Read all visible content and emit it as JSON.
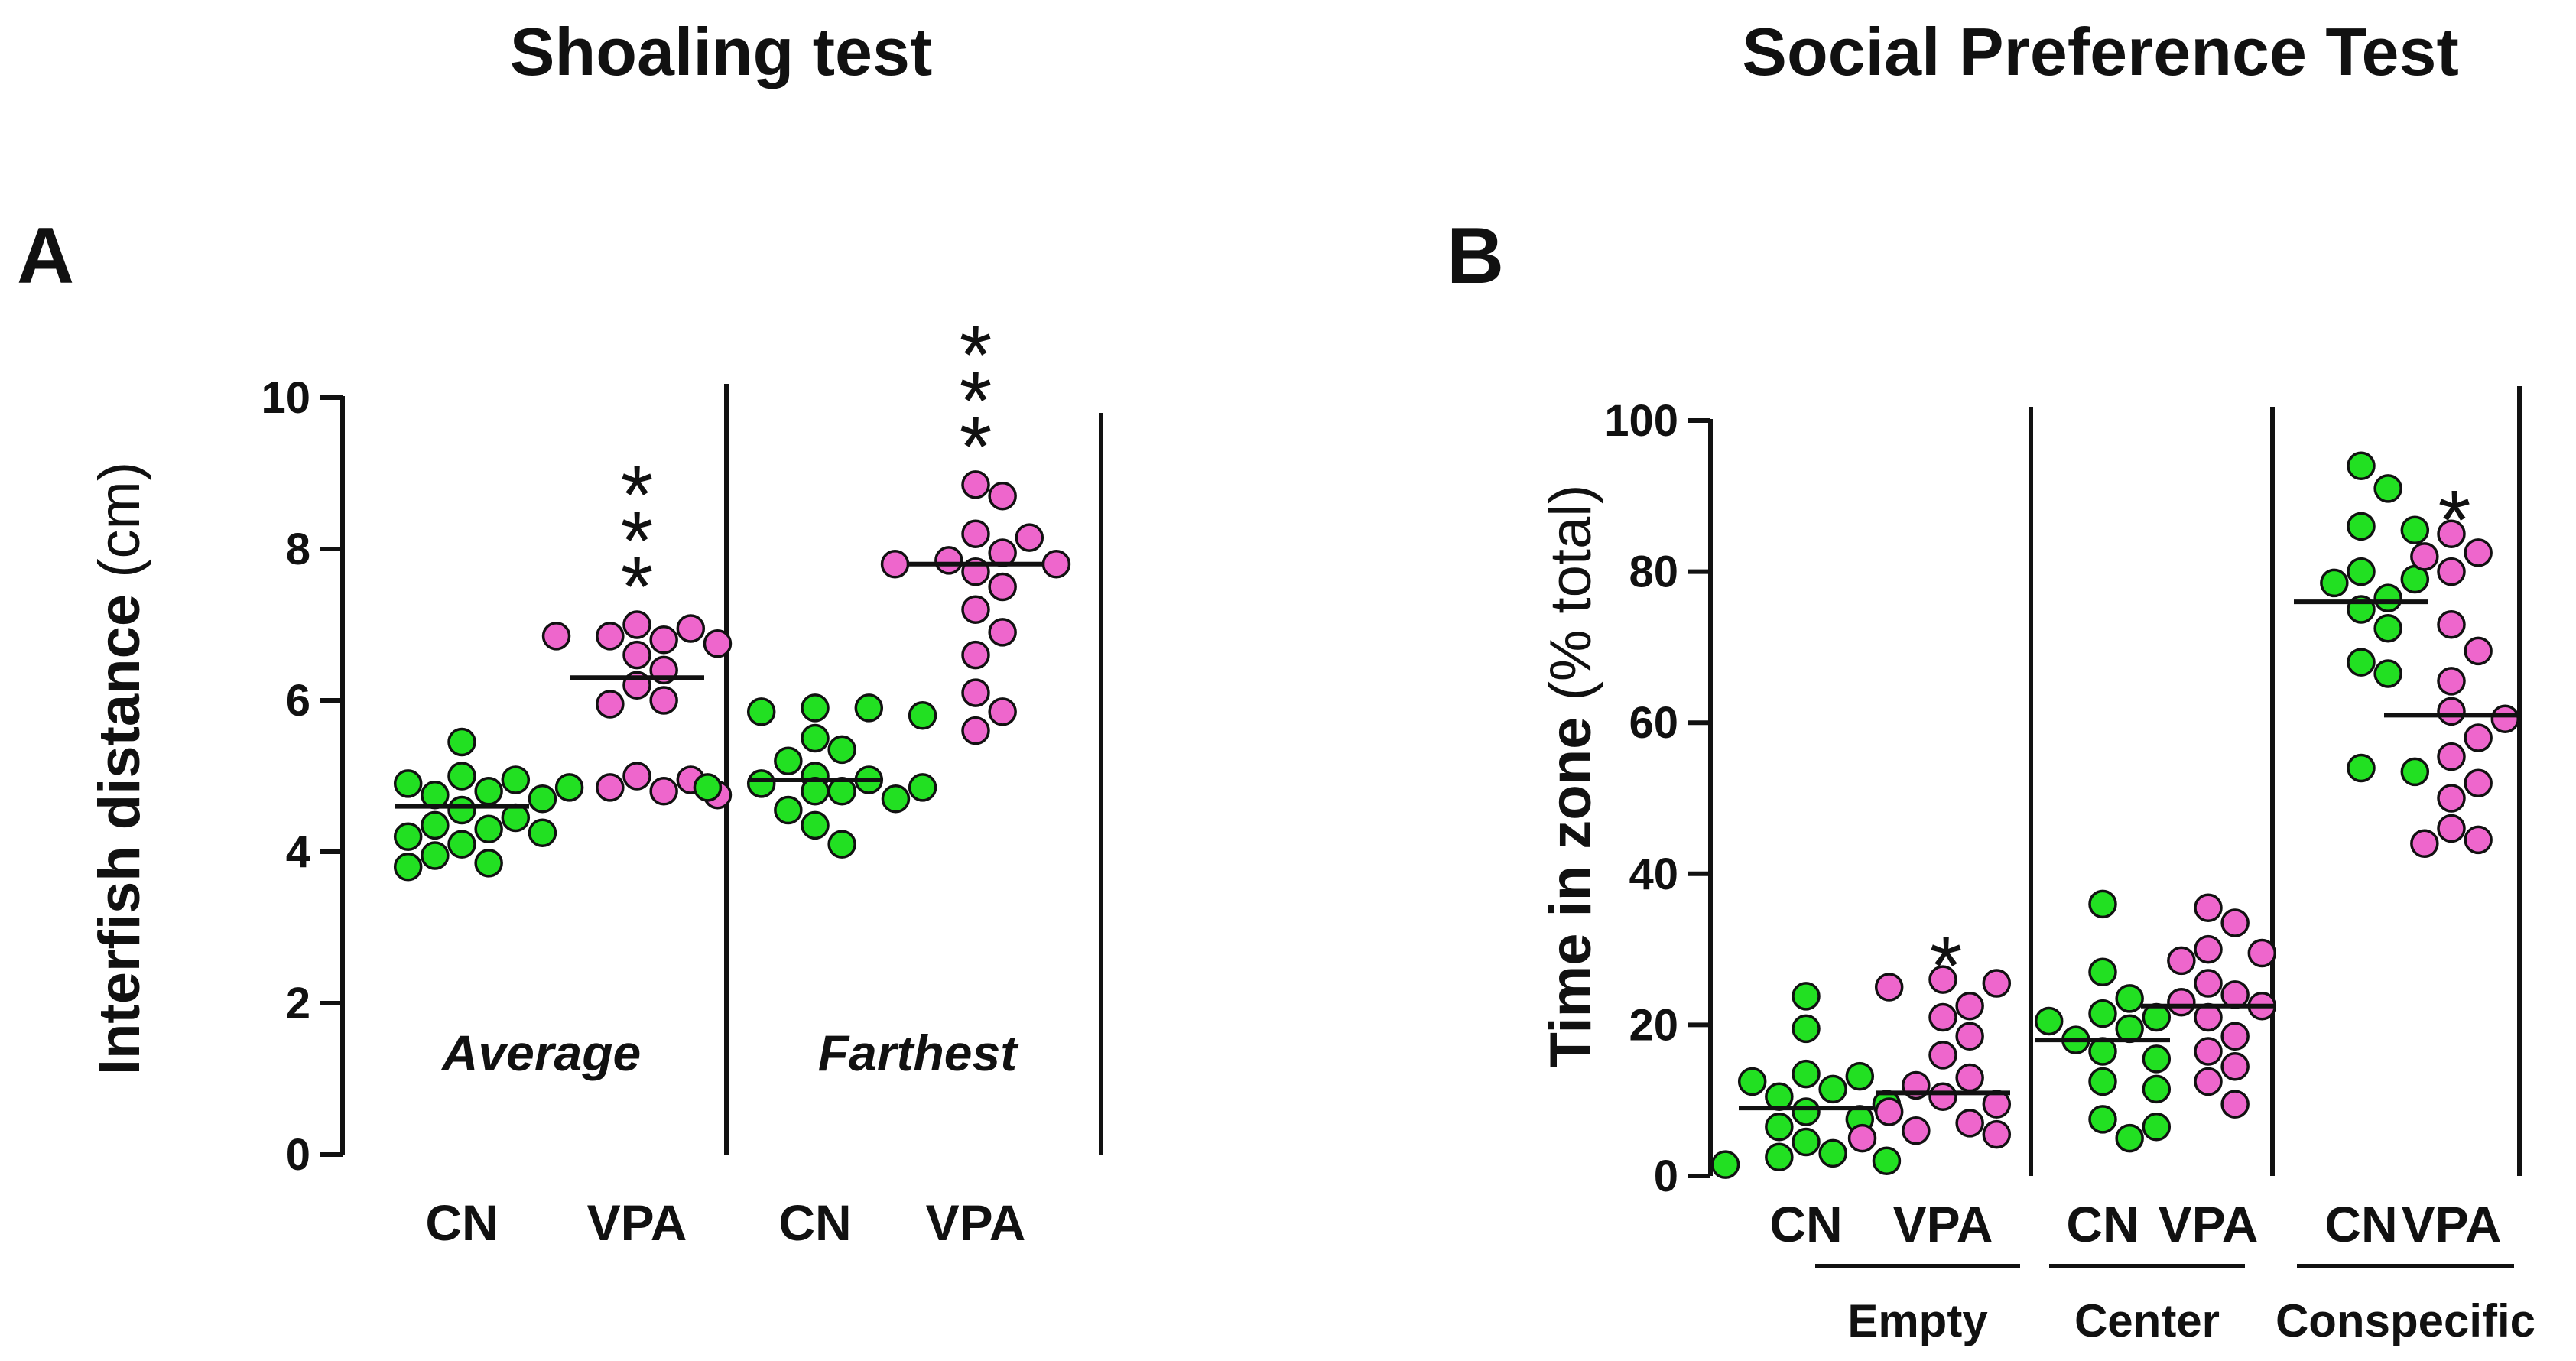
{
  "colors": {
    "CN": "#22e022",
    "VPA": "#ee66cc",
    "ink": "#111111"
  },
  "chart_data": [
    {
      "type": "scatter",
      "panel": "A",
      "title": "Shoaling test",
      "ylabel_bold": "Interfish distance",
      "ylabel_normal": "(cm)",
      "ylim": [
        0,
        10
      ],
      "yticks": [
        "0",
        "2",
        "4",
        "6",
        "8",
        "10"
      ],
      "yticks_values": [
        0,
        2,
        4,
        6,
        8,
        10
      ],
      "groups": [
        {
          "name": "Average",
          "condition_label": "Average",
          "series": [
            {
              "name": "CN",
              "median": 4.6,
              "significance": "",
              "values": [
                5.45,
                5.0,
                4.95,
                4.9,
                4.85,
                4.8,
                4.75,
                4.7,
                4.55,
                4.45,
                4.35,
                4.3,
                4.25,
                4.2,
                4.1,
                3.95,
                3.85,
                3.8
              ]
            },
            {
              "name": "VPA",
              "median": 6.3,
              "significance": "***",
              "values": [
                7.0,
                6.95,
                6.85,
                6.85,
                6.8,
                6.75,
                6.6,
                6.4,
                6.2,
                6.0,
                5.95,
                5.0,
                4.95,
                4.85,
                4.8,
                4.75
              ]
            }
          ]
        },
        {
          "name": "Farthest",
          "condition_label": "Farthest",
          "series": [
            {
              "name": "CN",
              "median": 4.95,
              "significance": "",
              "values": [
                5.9,
                5.9,
                5.85,
                5.8,
                5.5,
                5.35,
                5.2,
                5.0,
                4.95,
                4.9,
                4.85,
                4.85,
                4.8,
                4.8,
                4.7,
                4.55,
                4.35,
                4.1
              ]
            },
            {
              "name": "VPA",
              "median": 7.8,
              "significance": "***",
              "values": [
                8.85,
                8.7,
                8.2,
                8.15,
                7.95,
                7.85,
                7.8,
                7.8,
                7.7,
                7.5,
                7.2,
                6.9,
                6.6,
                6.1,
                5.85,
                5.6
              ]
            }
          ]
        }
      ]
    },
    {
      "type": "scatter",
      "panel": "B",
      "title": "Social Preference Test",
      "ylabel_bold": "Time in zone",
      "ylabel_normal": "(% total)",
      "ylim": [
        0,
        100
      ],
      "yticks": [
        "0",
        "20",
        "40",
        "60",
        "80",
        "100"
      ],
      "yticks_values": [
        0,
        20,
        40,
        60,
        80,
        100
      ],
      "groups": [
        {
          "name": "Empty",
          "zone_label": "Empty",
          "series": [
            {
              "name": "CN",
              "median": 9,
              "significance": "",
              "values": [
                23.8,
                19.5,
                13.5,
                13.2,
                12.5,
                11.5,
                10.5,
                9.5,
                8.5,
                7.5,
                6.5,
                4.5,
                3.0,
                2.5,
                2.0,
                1.5
              ]
            },
            {
              "name": "VPA",
              "median": 11,
              "significance": "*",
              "values": [
                26.0,
                25.5,
                25.0,
                22.5,
                21.0,
                18.5,
                16.0,
                13.0,
                12.0,
                10.5,
                9.5,
                8.5,
                7.0,
                6.0,
                5.5,
                5.0
              ]
            }
          ]
        },
        {
          "name": "Center",
          "zone_label": "Center",
          "series": [
            {
              "name": "CN",
              "median": 18,
              "significance": "",
              "values": [
                36.0,
                27.0,
                23.5,
                21.5,
                21.0,
                20.5,
                19.5,
                18.0,
                16.5,
                15.5,
                12.5,
                11.5,
                7.5,
                6.5,
                5.0
              ]
            },
            {
              "name": "VPA",
              "median": 22.5,
              "significance": "",
              "values": [
                35.5,
                33.5,
                30.0,
                29.5,
                28.5,
                25.5,
                24.0,
                23.0,
                22.5,
                21.0,
                18.5,
                16.5,
                14.5,
                12.5,
                9.5
              ]
            }
          ]
        },
        {
          "name": "Conspecific",
          "zone_label": "Conspecific",
          "series": [
            {
              "name": "CN",
              "median": 76,
              "significance": "",
              "values": [
                94.0,
                91.0,
                86.0,
                85.5,
                80.0,
                79.0,
                78.5,
                76.5,
                75.0,
                72.5,
                68.0,
                66.5,
                54.0,
                53.5
              ]
            },
            {
              "name": "VPA",
              "median": 61,
              "significance": "*",
              "values": [
                85.0,
                82.5,
                82.0,
                80.0,
                73.0,
                69.5,
                65.5,
                61.5,
                60.5,
                58.0,
                55.5,
                52.0,
                50.0,
                46.0,
                44.5,
                44.0
              ]
            }
          ]
        }
      ]
    }
  ]
}
